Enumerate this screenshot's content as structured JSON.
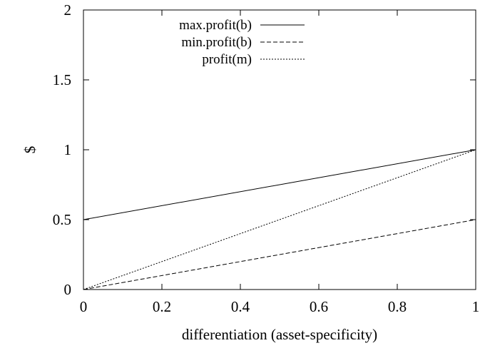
{
  "chart_data": {
    "type": "line",
    "title": "",
    "xlabel": "differentiation (asset-specificity)",
    "ylabel": "$",
    "xlim": [
      0,
      1
    ],
    "ylim": [
      0,
      2
    ],
    "x_ticks": [
      0,
      0.2,
      0.4,
      0.6,
      0.8,
      1
    ],
    "y_ticks": [
      0,
      0.5,
      1,
      1.5,
      2
    ],
    "x_tick_labels": [
      "0",
      "0.2",
      "0.4",
      "0.6",
      "0.8",
      "1"
    ],
    "y_tick_labels": [
      "0",
      "0.5",
      "1",
      "1.5",
      "2"
    ],
    "grid": false,
    "legend_position": "top-left",
    "series": [
      {
        "name": "max.profit(b)",
        "style": "solid",
        "x": [
          0,
          1
        ],
        "y": [
          0.5,
          1
        ]
      },
      {
        "name": "min.profit(b)",
        "style": "dashed",
        "x": [
          0,
          1
        ],
        "y": [
          0,
          0.5
        ]
      },
      {
        "name": "profit(m)",
        "style": "dotted",
        "x": [
          0,
          1
        ],
        "y": [
          0,
          1
        ]
      }
    ]
  }
}
